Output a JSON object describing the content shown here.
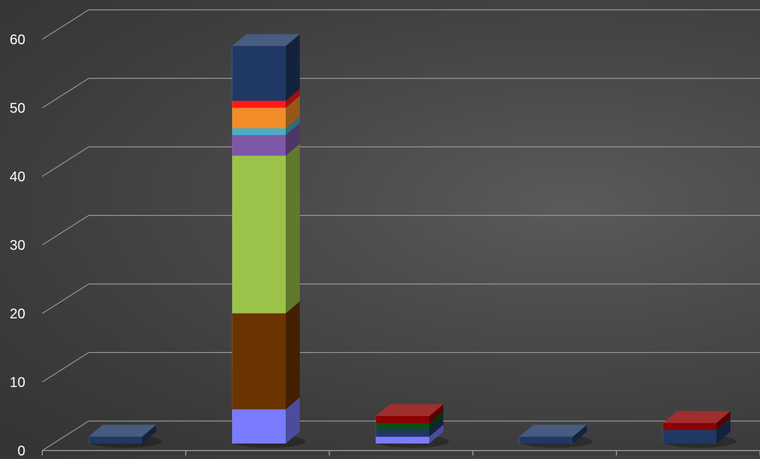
{
  "chart_data": {
    "type": "bar",
    "stacked": true,
    "three_d": true,
    "title": "",
    "xlabel": "",
    "ylabel": "",
    "ylim": [
      0,
      60
    ],
    "yticks": [
      0,
      10,
      20,
      30,
      40,
      50,
      60
    ],
    "grid": true,
    "legend": "none",
    "categories": [
      "",
      "",
      "",
      "",
      ""
    ],
    "columns": [
      {
        "segments": [
          {
            "value": 1.0,
            "color": "#1f3864"
          }
        ]
      },
      {
        "segments": [
          {
            "value": 5.0,
            "color": "#7b7bff"
          },
          {
            "value": 14.0,
            "color": "#6b3300"
          },
          {
            "value": 23.0,
            "color": "#9bc34a"
          },
          {
            "value": 3.0,
            "color": "#7e57a8"
          },
          {
            "value": 1.0,
            "color": "#4bacc6"
          },
          {
            "value": 3.0,
            "color": "#f28c28"
          },
          {
            "value": 1.0,
            "color": "#ff1a1a"
          },
          {
            "value": 8.0,
            "color": "#1f3864"
          }
        ]
      },
      {
        "segments": [
          {
            "value": 1.0,
            "color": "#7b7bff"
          },
          {
            "value": 1.0,
            "color": "#1f3864"
          },
          {
            "value": 1.0,
            "color": "#0e4d1a"
          },
          {
            "value": 1.0,
            "color": "#8b0000"
          }
        ]
      },
      {
        "segments": [
          {
            "value": 1.0,
            "color": "#1f3864"
          }
        ]
      },
      {
        "segments": [
          {
            "value": 2.0,
            "color": "#1f3864"
          },
          {
            "value": 1.0,
            "color": "#8b0000"
          }
        ]
      }
    ],
    "colors": {
      "gridline": "#9a9a9a",
      "axis_text": "#ffffff"
    }
  }
}
